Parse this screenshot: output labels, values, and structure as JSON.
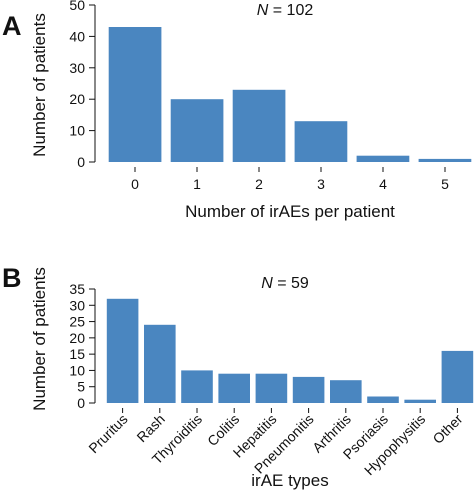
{
  "panels": [
    {
      "letter": "A",
      "note_var": "N",
      "note_rest": " = 102"
    },
    {
      "letter": "B",
      "note_var": "N",
      "note_rest": " = 59"
    }
  ],
  "chart_data": [
    {
      "type": "bar",
      "categories": [
        "0",
        "1",
        "2",
        "3",
        "4",
        "5"
      ],
      "values": [
        43,
        20,
        23,
        13,
        2,
        1
      ],
      "xlabel": "Number of irAEs per patient",
      "ylabel": "Number of patients",
      "ylim": [
        0,
        50
      ],
      "yticks": [
        0,
        10,
        20,
        30,
        40,
        50
      ],
      "bar_color": "#4a86c0",
      "grid": false
    },
    {
      "type": "bar",
      "categories": [
        "Pruritus",
        "Rash",
        "Thyroiditis",
        "Colitis",
        "Hepatitis",
        "Pneumonitis",
        "Arthritis",
        "Psoriasis",
        "Hypophysitis",
        "Other"
      ],
      "values": [
        32,
        24,
        10,
        9,
        9,
        8,
        7,
        2,
        1,
        16
      ],
      "xlabel": "irAE types",
      "ylabel": "Number of patients",
      "ylim": [
        0,
        35
      ],
      "yticks": [
        0,
        5,
        10,
        15,
        20,
        25,
        30,
        35
      ],
      "bar_color": "#4a86c0",
      "grid": false
    }
  ]
}
